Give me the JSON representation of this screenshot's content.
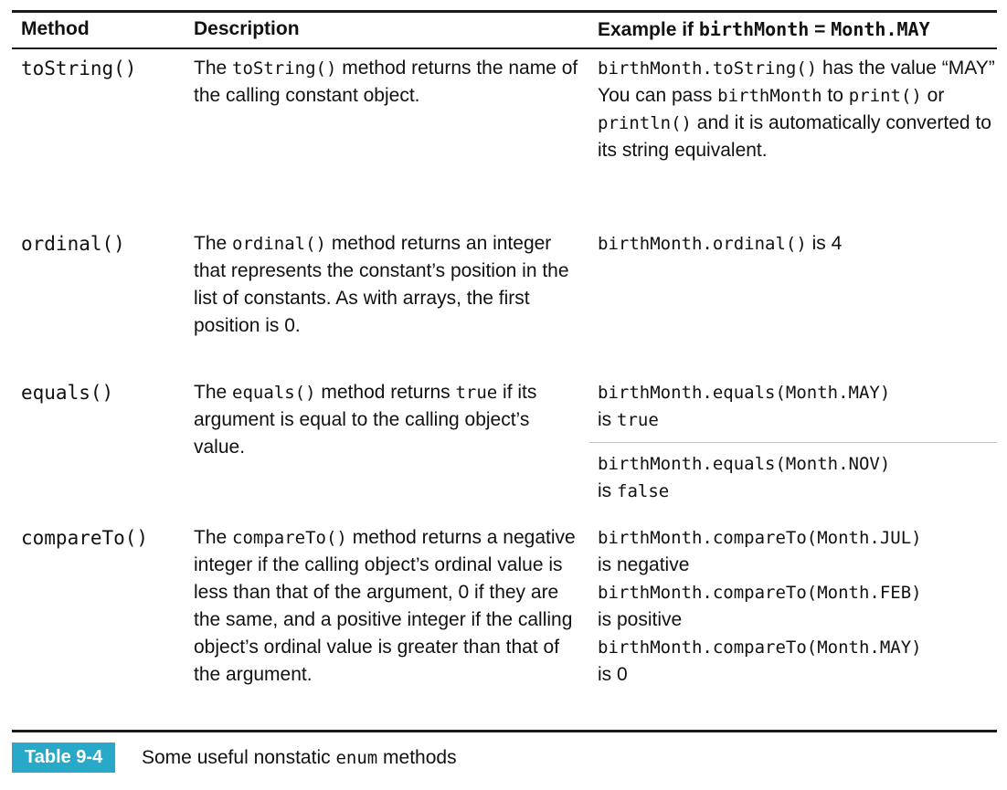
{
  "header": {
    "method": "Method",
    "description": "Description",
    "example_prefix": "Example if",
    "example_var": "birthMonth",
    "example_eq": "=",
    "example_val": "Month.MAY"
  },
  "rows": [
    {
      "method": "toString()",
      "desc": {
        "a": "The ",
        "code": "toString()",
        "b": " method returns the name of the calling constant object."
      },
      "example": {
        "line1_code": "birthMonth.toString()",
        "line1_text": " has the value “MAY”",
        "line2_a": "You can pass ",
        "line2_code1": "birthMonth",
        "line2_b": " to ",
        "line2_code2": "print()",
        "line2_c": " or ",
        "line2_code3": "println()",
        "line2_d": " and it is automatically converted to its string equivalent."
      }
    },
    {
      "method": "ordinal()",
      "desc": {
        "a": "The ",
        "code": "ordinal()",
        "b": " method returns an integer that represents the constant’s position in the list of constants. As with arrays, the first position is 0."
      },
      "example": {
        "code": "birthMonth.ordinal()",
        "text": " is 4"
      }
    },
    {
      "method": "equals()",
      "desc": {
        "a": "The ",
        "code": "equals()",
        "b": " method returns ",
        "code2": "true",
        "c": " if its argument is equal to the calling object’s value."
      },
      "example": {
        "e1_code": "birthMonth.equals(Month.MAY)",
        "e1_text": "is ",
        "e1_code2": "true",
        "e2_code": "birthMonth.equals(Month.NOV)",
        "e2_text": "is ",
        "e2_code2": "false"
      }
    },
    {
      "method": "compareTo()",
      "desc": {
        "a": "The ",
        "code": "compareTo()",
        "b": " method returns a negative integer if the calling object’s ordinal value is less than that of the argument, 0 if they are the same, and a positive integer if the calling object’s ordinal value is greater than that of the argument."
      },
      "example": {
        "e1_code": "birthMonth.compareTo(Month.JUL)",
        "e1_text": "is negative",
        "e2_code": "birthMonth.compareTo(Month.FEB)",
        "e2_text": "is positive",
        "e3_code": "birthMonth.compareTo(Month.MAY)",
        "e3_text": "is 0"
      }
    }
  ],
  "caption": {
    "label": "Table 9-4",
    "text_a": "Some useful nonstatic ",
    "text_code": "enum",
    "text_b": " methods"
  },
  "colors": {
    "caption_bg": "#29a9c8",
    "rule": "#1a1a1a"
  }
}
